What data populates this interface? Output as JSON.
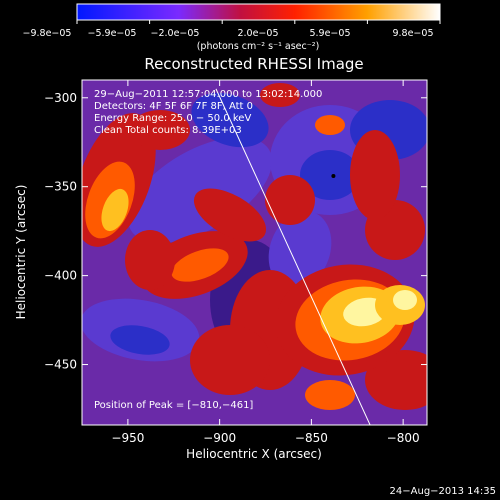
{
  "chart_data": {
    "type": "heatmap",
    "title": "Reconstructed RHESSI Image",
    "xlabel": "Heliocentric X (arcsec)",
    "ylabel": "Heliocentric Y (arcsec)",
    "xlim": [
      -975,
      -787
    ],
    "ylim": [
      -484,
      -290
    ],
    "x_ticks": [
      -950,
      -900,
      -850,
      -800
    ],
    "x_tick_labels": [
      "−950",
      "−900",
      "−850",
      "−800"
    ],
    "y_ticks": [
      -300,
      -350,
      -400,
      -450
    ],
    "y_tick_labels": [
      "−300",
      "−350",
      "−400",
      "−450"
    ],
    "colorbar": {
      "range": [
        -9.8e-05,
        9.8e-05
      ],
      "tick_labels": [
        "−9.8e−05",
        "−5.9e−05",
        "−2.0e−05",
        "2.0e−05",
        "5.9e−05",
        "9.8e−05"
      ],
      "unit_label": "(photons cm⁻² s⁻¹ asec⁻²)",
      "colors": [
        "#0018ff",
        "#7a2aff",
        "#c01040",
        "#ff2000",
        "#ffa000",
        "#ffffff"
      ]
    },
    "annotations": [
      "29−Aug−2011 12:57:04.000 to 13:02:14.000",
      "Detectors: 4F 5F 6F 7F 8F, Att 0",
      "Energy Range: 25.0 − 50.0 keV",
      "Clean    Total counts: 8.39E+03"
    ],
    "peak_label": "Position of Peak = [−810,−461]",
    "limb_line": [
      [
        -902,
        -295
      ],
      [
        -818,
        -484
      ]
    ],
    "marked_point": [
      -838,
      -344
    ],
    "grid": false
  },
  "footer": {
    "date": "24−Aug−2013 14:35"
  }
}
